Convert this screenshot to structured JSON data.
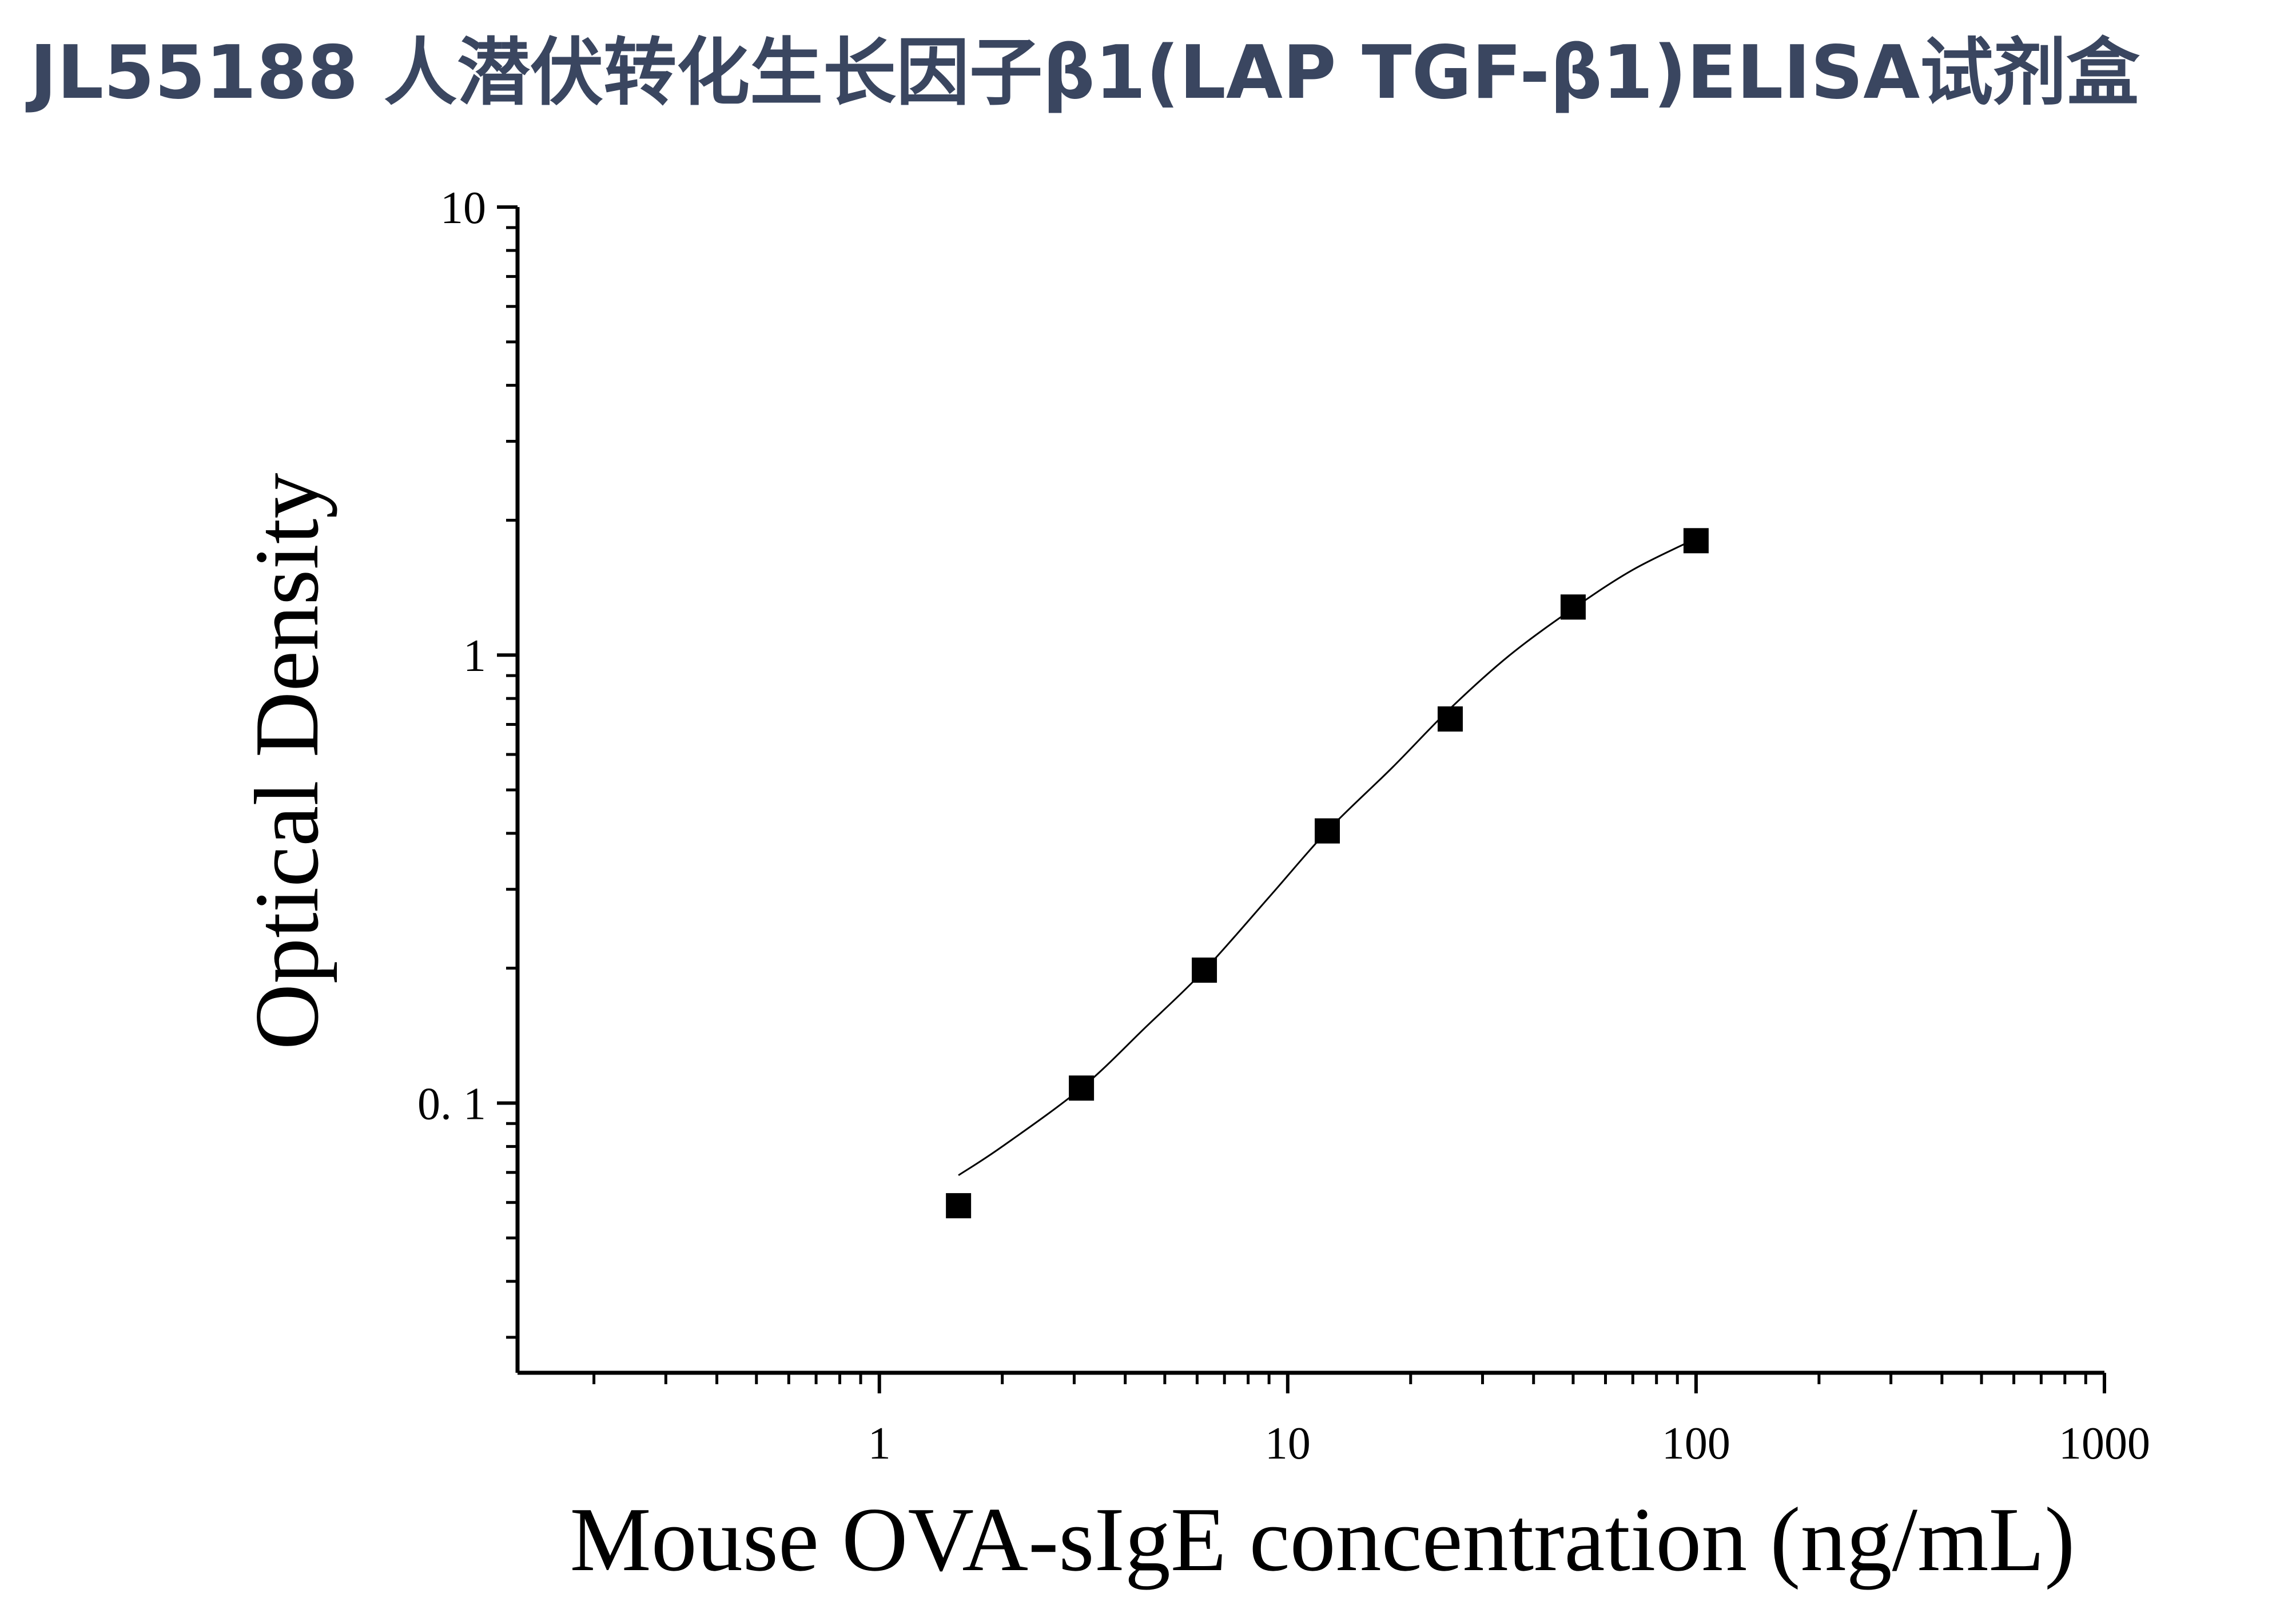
{
  "header": {
    "title": "JL55188 人潜伏转化生长因子β1(LAP TGF-β1)ELISA试剂盒"
  },
  "colors": {
    "title": "#3a4660",
    "axis": "#000000",
    "marker": "#000000",
    "curve": "#000000"
  },
  "chart_data": {
    "type": "scatter",
    "xlabel": "Mouse OVA-sIgE concentration (ng/mL)",
    "ylabel": "Optical Density",
    "xscale": "log",
    "yscale": "log",
    "xlim": [
      0.13,
      1000
    ],
    "ylim": [
      0.025,
      10
    ],
    "x_ticks": [
      {
        "value": 1,
        "label": "1"
      },
      {
        "value": 10,
        "label": "10"
      },
      {
        "value": 100,
        "label": "100"
      },
      {
        "value": 1000,
        "label": "1000"
      }
    ],
    "y_ticks": [
      {
        "value": 0.1,
        "label": "0. 1"
      },
      {
        "value": 1,
        "label": "1"
      },
      {
        "value": 10,
        "label": "10"
      }
    ],
    "grid": false,
    "marker": "square",
    "series": [
      {
        "x": [
          1.5625,
          3.125,
          6.25,
          12.5,
          25,
          50,
          100
        ],
        "y": [
          0.059,
          0.108,
          0.198,
          0.405,
          0.72,
          1.28,
          1.8
        ]
      }
    ],
    "fit_curve": {
      "x": [
        1.5625,
        2,
        3.125,
        4.5,
        6.25,
        9,
        12.5,
        18,
        25,
        35,
        50,
        70,
        100
      ],
      "y": [
        0.069,
        0.08,
        0.108,
        0.148,
        0.198,
        0.288,
        0.405,
        0.56,
        0.76,
        1.0,
        1.27,
        1.55,
        1.82
      ]
    }
  }
}
